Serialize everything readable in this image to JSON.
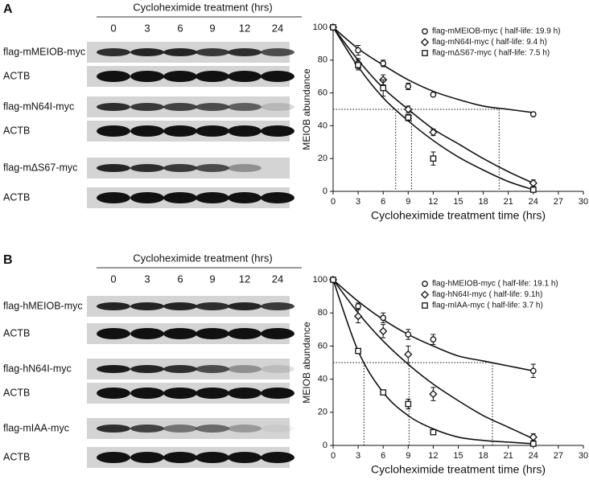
{
  "panels": [
    {
      "label": "A",
      "blot": {
        "header": "Cycloheximide treatment (hrs)",
        "lanes": [
          "0",
          "3",
          "6",
          "9",
          "12",
          "24"
        ],
        "rows": [
          {
            "label": "flag-mMEIOB-myc"
          },
          {
            "label": "ACTB"
          },
          {
            "label": "flag-mN64I-myc"
          },
          {
            "label": "ACTB"
          },
          {
            "label": "flag-mΔS67-myc"
          },
          {
            "label": "ACTB"
          }
        ]
      }
    },
    {
      "label": "B",
      "blot": {
        "header": "Cycloheximide treatment (hrs)",
        "lanes": [
          "0",
          "3",
          "6",
          "9",
          "12",
          "24"
        ],
        "rows": [
          {
            "label": "flag-hMEIOB-myc"
          },
          {
            "label": "ACTB"
          },
          {
            "label": "flag-hN64I-myc"
          },
          {
            "label": "ACTB"
          },
          {
            "label": "flag-mIAA-myc"
          },
          {
            "label": "ACTB"
          }
        ]
      }
    }
  ],
  "chart_data": [
    {
      "type": "line",
      "xlabel": "Cycloheximide treatment time (hrs)",
      "ylabel": "MEIOB abundance",
      "x": [
        0,
        3,
        6,
        9,
        12,
        24
      ],
      "fit_x": [
        0,
        3,
        6,
        9,
        12,
        15,
        18,
        21,
        24
      ],
      "xlim": [
        0,
        30
      ],
      "xticks": [
        0,
        3,
        6,
        9,
        12,
        15,
        18,
        21,
        24,
        27,
        30
      ],
      "ylim": [
        0,
        100
      ],
      "yticks": [
        0,
        20,
        40,
        60,
        80,
        100
      ],
      "reference_y": 50,
      "reference_x": [
        7.5,
        9.4,
        19.9
      ],
      "series": [
        {
          "name": "flag-mMEIOB-myc ( half-life: 19.9 h)",
          "marker": "circle",
          "color": "#111111",
          "values": [
            100,
            86,
            78,
            64,
            59,
            47
          ],
          "errors": [
            1,
            3,
            2,
            2,
            1,
            1
          ],
          "fit": [
            100,
            87,
            77,
            68,
            61,
            56,
            52,
            50,
            48
          ]
        },
        {
          "name": "flag-mN64I-myc ( half-life: 9.4 h)",
          "marker": "diamond",
          "color": "#111111",
          "values": [
            100,
            78,
            68,
            50,
            36,
            5
          ],
          "errors": [
            1,
            3,
            3,
            2,
            2,
            2
          ],
          "fit": [
            100,
            80,
            63,
            50,
            38,
            29,
            20,
            12,
            5
          ]
        },
        {
          "name": "flag-mΔS67-myc ( half-life: 7.5 h)",
          "marker": "square",
          "color": "#111111",
          "values": [
            100,
            77,
            63,
            45,
            20,
            1
          ],
          "errors": [
            1,
            3,
            5,
            2,
            4,
            1
          ],
          "fit": [
            100,
            76,
            57,
            43,
            31,
            21,
            13,
            6,
            1
          ]
        }
      ]
    },
    {
      "type": "line",
      "xlabel": "Cycloheximide treatment time (hrs)",
      "ylabel": "MEIOB abundance",
      "x": [
        0,
        3,
        6,
        9,
        12,
        24
      ],
      "fit_x": [
        0,
        3,
        6,
        9,
        12,
        15,
        18,
        21,
        24
      ],
      "xlim": [
        0,
        30
      ],
      "xticks": [
        0,
        3,
        6,
        9,
        12,
        15,
        18,
        21,
        24,
        27,
        30
      ],
      "ylim": [
        0,
        100
      ],
      "yticks": [
        0,
        20,
        40,
        60,
        80,
        100
      ],
      "reference_y": 50,
      "reference_x": [
        3.7,
        9.1,
        19.1
      ],
      "series": [
        {
          "name": "flag-hMEIOB-myc ( half-life: 19.1 h)",
          "marker": "circle",
          "color": "#111111",
          "values": [
            100,
            84,
            77,
            67,
            64,
            45
          ],
          "errors": [
            1,
            2,
            3,
            3,
            3,
            4
          ],
          "fit": [
            100,
            87,
            76,
            67,
            60,
            54,
            51,
            48,
            45
          ]
        },
        {
          "name": "flag-hN64I-myc ( half-life: 9.1h)",
          "marker": "diamond",
          "color": "#111111",
          "values": [
            100,
            78,
            69,
            55,
            31,
            5
          ],
          "errors": [
            1,
            4,
            4,
            5,
            4,
            2
          ],
          "fit": [
            100,
            80,
            63,
            49,
            37,
            27,
            18,
            11,
            4
          ]
        },
        {
          "name": "flag-mIAA-myc ( half-life: 3.7 h)",
          "marker": "square",
          "color": "#111111",
          "values": [
            100,
            57,
            32,
            25,
            8,
            1
          ],
          "errors": [
            1,
            1,
            1,
            3,
            1,
            1
          ],
          "fit": [
            100,
            57,
            32,
            18,
            10,
            5,
            3,
            2,
            1
          ]
        }
      ]
    }
  ]
}
